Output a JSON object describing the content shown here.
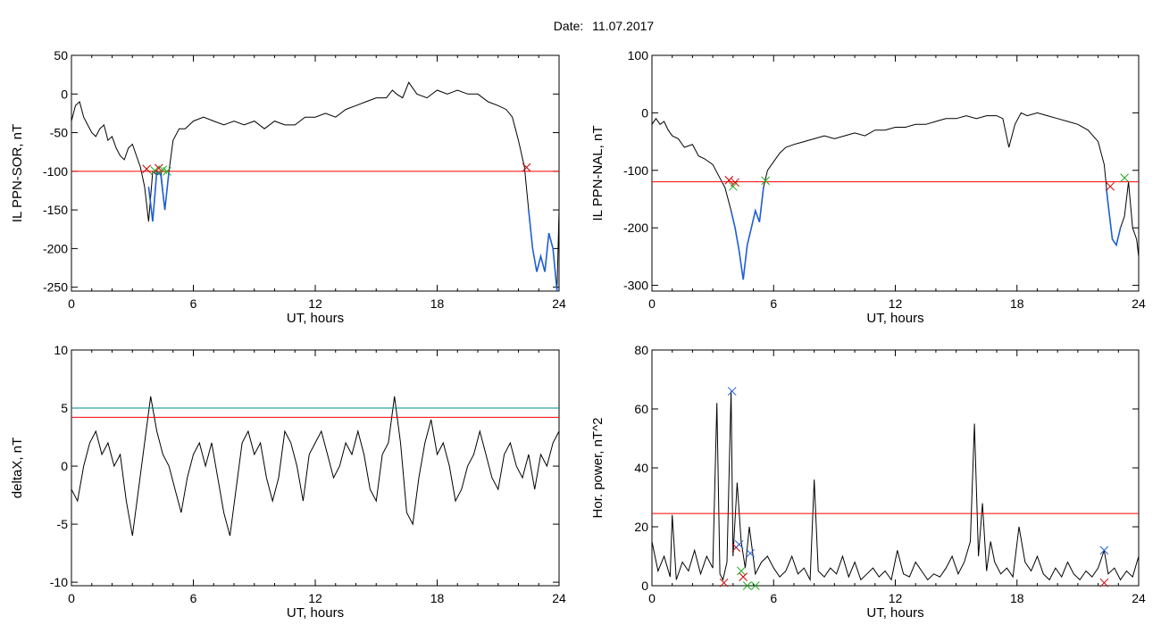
{
  "date_label": "Date:",
  "date_value": "11.07.2017",
  "colors": {
    "trace": "#000000",
    "threshold": "#ff0000",
    "threshold_alt": "#008b8b",
    "highlight": "#1f5fd8",
    "mark_red": "#cc0000",
    "mark_green": "#22aa22",
    "mark_blue": "#1f5fd8"
  },
  "chart_data": [
    {
      "type": "line",
      "xlabel": "UT, hours",
      "ylabel": "IL PPN-SOR, nT",
      "xlim": [
        0,
        24
      ],
      "ylim": [
        -255,
        50
      ],
      "xticks": [
        0,
        6,
        12,
        18,
        24
      ],
      "yticks": [
        50,
        0,
        -50,
        -100,
        -150,
        -200,
        -250
      ],
      "thresholds": [
        {
          "value": -100,
          "color": "red"
        }
      ],
      "series": [
        {
          "style": "black",
          "x": [
            0,
            0.2,
            0.4,
            0.6,
            0.8,
            1.0,
            1.2,
            1.4,
            1.6,
            1.8,
            2.0,
            2.2,
            2.4,
            2.6,
            2.8,
            3.0,
            3.2,
            3.4,
            3.6,
            3.8,
            4.0,
            4.2,
            4.4,
            4.6,
            4.8,
            5.0,
            5.3,
            5.6,
            6.0,
            6.5,
            7.0,
            7.5,
            8.0,
            8.5,
            9.0,
            9.5,
            10.0,
            10.5,
            11.0,
            11.5,
            12.0,
            12.5,
            13.0,
            13.5,
            14.0,
            14.5,
            15.0,
            15.5,
            15.8,
            16.0,
            16.3,
            16.6,
            17.0,
            17.5,
            18.0,
            18.5,
            19.0,
            19.5,
            20.0,
            20.5,
            21.0,
            21.4,
            21.7,
            22.0,
            22.3,
            22.5,
            22.7,
            22.9,
            23.1,
            23.3,
            23.5,
            23.7,
            23.9,
            24.0
          ],
          "y": [
            -35,
            -15,
            -10,
            -30,
            -40,
            -50,
            -55,
            -45,
            -40,
            -60,
            -55,
            -70,
            -80,
            -85,
            -70,
            -65,
            -80,
            -95,
            -120,
            -165,
            -100,
            -105,
            -100,
            -150,
            -100,
            -60,
            -45,
            -45,
            -35,
            -30,
            -35,
            -40,
            -35,
            -40,
            -35,
            -45,
            -35,
            -40,
            -40,
            -30,
            -30,
            -25,
            -30,
            -20,
            -15,
            -10,
            -5,
            -5,
            5,
            0,
            -5,
            15,
            0,
            -5,
            5,
            0,
            5,
            0,
            0,
            -10,
            -15,
            -20,
            -30,
            -60,
            -95,
            -150,
            -200,
            -230,
            -210,
            -230,
            -180,
            -200,
            -255,
            -150
          ]
        },
        {
          "style": "blue",
          "x": [
            3.8,
            4.0,
            4.2,
            4.4,
            4.6,
            4.8
          ],
          "y": [
            -120,
            -165,
            -100,
            -105,
            -150,
            -100
          ]
        },
        {
          "style": "blue",
          "x": [
            22.5,
            22.7,
            22.9,
            23.1,
            23.3,
            23.5,
            23.7,
            23.9
          ],
          "y": [
            -150,
            -200,
            -230,
            -210,
            -230,
            -180,
            -200,
            -255
          ]
        }
      ],
      "markers": [
        {
          "x": 3.7,
          "y": -97,
          "color": "red"
        },
        {
          "x": 4.1,
          "y": -99,
          "color": "green"
        },
        {
          "x": 4.3,
          "y": -96,
          "color": "red"
        },
        {
          "x": 4.5,
          "y": -98,
          "color": "green"
        },
        {
          "x": 4.7,
          "y": -100,
          "color": "green"
        },
        {
          "x": 22.4,
          "y": -95,
          "color": "red"
        }
      ]
    },
    {
      "type": "line",
      "xlabel": "UT, hours",
      "ylabel": "IL PPN-NAL, nT",
      "xlim": [
        0,
        24
      ],
      "ylim": [
        -310,
        100
      ],
      "xticks": [
        0,
        6,
        12,
        18,
        24
      ],
      "yticks": [
        100,
        0,
        -100,
        -200,
        -300
      ],
      "thresholds": [
        {
          "value": -120,
          "color": "red"
        }
      ],
      "series": [
        {
          "style": "black",
          "x": [
            0,
            0.2,
            0.4,
            0.6,
            0.8,
            1.0,
            1.3,
            1.6,
            2.0,
            2.3,
            2.6,
            3.0,
            3.3,
            3.6,
            3.9,
            4.1,
            4.3,
            4.5,
            4.7,
            4.9,
            5.1,
            5.3,
            5.5,
            5.7,
            6.0,
            6.3,
            6.6,
            7.0,
            7.5,
            8.0,
            8.5,
            9.0,
            9.5,
            10.0,
            10.5,
            11.0,
            11.5,
            12.0,
            12.5,
            13.0,
            13.5,
            14.0,
            14.5,
            15.0,
            15.5,
            16.0,
            16.5,
            17.0,
            17.3,
            17.6,
            17.9,
            18.2,
            18.5,
            19.0,
            19.5,
            20.0,
            20.5,
            21.0,
            21.5,
            22.0,
            22.3,
            22.5,
            22.7,
            22.9,
            23.1,
            23.3,
            23.5,
            23.7,
            23.9,
            24.0
          ],
          "y": [
            -20,
            -10,
            -20,
            -15,
            -30,
            -40,
            -45,
            -60,
            -55,
            -75,
            -80,
            -90,
            -110,
            -130,
            -170,
            -200,
            -240,
            -290,
            -230,
            -200,
            -170,
            -190,
            -130,
            -100,
            -85,
            -70,
            -60,
            -55,
            -50,
            -45,
            -40,
            -45,
            -40,
            -35,
            -40,
            -30,
            -30,
            -25,
            -25,
            -20,
            -20,
            -15,
            -10,
            -10,
            -5,
            -10,
            -5,
            -5,
            -10,
            -60,
            -20,
            0,
            -5,
            0,
            -5,
            -10,
            -15,
            -20,
            -30,
            -50,
            -90,
            -160,
            -220,
            -230,
            -200,
            -180,
            -120,
            -200,
            -220,
            -250
          ]
        },
        {
          "style": "blue",
          "x": [
            3.9,
            4.1,
            4.3,
            4.5,
            4.7,
            4.9,
            5.1,
            5.3,
            5.5
          ],
          "y": [
            -170,
            -200,
            -240,
            -290,
            -230,
            -200,
            -170,
            -190,
            -130
          ]
        },
        {
          "style": "blue",
          "x": [
            22.4,
            22.5,
            22.7,
            22.9,
            23.1
          ],
          "y": [
            -130,
            -160,
            -220,
            -230,
            -200
          ]
        }
      ],
      "markers": [
        {
          "x": 3.8,
          "y": -117,
          "color": "red"
        },
        {
          "x": 4.0,
          "y": -128,
          "color": "green"
        },
        {
          "x": 4.1,
          "y": -121,
          "color": "red"
        },
        {
          "x": 5.6,
          "y": -118,
          "color": "green"
        },
        {
          "x": 22.6,
          "y": -128,
          "color": "red"
        },
        {
          "x": 23.3,
          "y": -113,
          "color": "green"
        }
      ]
    },
    {
      "type": "line",
      "xlabel": "UT, hours",
      "ylabel": "deltaX, nT",
      "xlim": [
        0,
        24
      ],
      "ylim": [
        -10.3,
        10
      ],
      "xticks": [
        0,
        6,
        12,
        18,
        24
      ],
      "yticks": [
        10,
        5,
        0,
        -5,
        -10
      ],
      "thresholds": [
        {
          "value": 5.0,
          "color": "teal"
        },
        {
          "value": 4.2,
          "color": "red"
        }
      ],
      "series": [
        {
          "style": "black",
          "x": [
            0,
            0.3,
            0.6,
            0.9,
            1.2,
            1.5,
            1.8,
            2.1,
            2.4,
            2.7,
            3.0,
            3.3,
            3.6,
            3.9,
            4.2,
            4.5,
            4.8,
            5.1,
            5.4,
            5.7,
            6.0,
            6.3,
            6.6,
            6.9,
            7.2,
            7.5,
            7.8,
            8.1,
            8.4,
            8.7,
            9.0,
            9.3,
            9.6,
            9.9,
            10.2,
            10.5,
            10.8,
            11.1,
            11.4,
            11.7,
            12.0,
            12.3,
            12.6,
            12.9,
            13.2,
            13.5,
            13.8,
            14.1,
            14.4,
            14.7,
            15.0,
            15.3,
            15.6,
            15.9,
            16.2,
            16.5,
            16.8,
            17.1,
            17.4,
            17.7,
            18.0,
            18.3,
            18.6,
            18.9,
            19.2,
            19.5,
            19.8,
            20.1,
            20.4,
            20.7,
            21.0,
            21.3,
            21.6,
            21.9,
            22.2,
            22.5,
            22.8,
            23.1,
            23.4,
            23.7,
            24.0
          ],
          "y": [
            -2,
            -3,
            0,
            2,
            3,
            1,
            2,
            0,
            1,
            -3,
            -6,
            -2,
            2,
            6,
            3,
            1,
            0,
            -2,
            -4,
            -1,
            1,
            2,
            0,
            2,
            -1,
            -4,
            -6,
            -2,
            2,
            3,
            1,
            2,
            -1,
            -3,
            -1,
            3,
            2,
            0,
            -3,
            1,
            2,
            3,
            1,
            -1,
            0,
            2,
            1,
            3,
            1,
            -2,
            -3,
            1,
            2,
            6,
            2,
            -4,
            -5,
            -1,
            2,
            4,
            1,
            2,
            0,
            -3,
            -2,
            0,
            1,
            3,
            1,
            -1,
            -2,
            1,
            2,
            0,
            -1,
            1,
            -2,
            1,
            0,
            2,
            3
          ]
        }
      ],
      "markers": []
    },
    {
      "type": "line",
      "xlabel": "UT, hours",
      "ylabel": "Hor. power, nT^2",
      "xlim": [
        0,
        24
      ],
      "ylim": [
        0,
        80
      ],
      "xticks": [
        0,
        6,
        12,
        18,
        24
      ],
      "yticks": [
        80,
        60,
        40,
        20,
        0
      ],
      "thresholds": [
        {
          "value": 24.5,
          "color": "red"
        }
      ],
      "series": [
        {
          "style": "black",
          "x": [
            0,
            0.3,
            0.6,
            0.9,
            1.0,
            1.2,
            1.5,
            1.8,
            2.1,
            2.4,
            2.7,
            3.0,
            3.2,
            3.35,
            3.5,
            3.7,
            3.9,
            4.0,
            4.2,
            4.4,
            4.6,
            4.8,
            5.1,
            5.4,
            5.7,
            6.0,
            6.3,
            6.6,
            6.9,
            7.2,
            7.5,
            7.8,
            8.0,
            8.2,
            8.5,
            8.8,
            9.1,
            9.4,
            9.7,
            10.0,
            10.3,
            10.6,
            10.9,
            11.2,
            11.5,
            11.8,
            12.1,
            12.4,
            12.7,
            13.0,
            13.3,
            13.6,
            13.9,
            14.2,
            14.5,
            14.8,
            15.1,
            15.4,
            15.7,
            15.9,
            16.1,
            16.3,
            16.5,
            16.7,
            16.9,
            17.2,
            17.5,
            17.8,
            18.1,
            18.4,
            18.7,
            19.0,
            19.3,
            19.6,
            19.9,
            20.2,
            20.5,
            20.8,
            21.1,
            21.4,
            21.7,
            22.0,
            22.3,
            22.5,
            22.8,
            23.1,
            23.4,
            23.7,
            24.0
          ],
          "y": [
            15,
            5,
            10,
            3,
            24,
            2,
            8,
            5,
            12,
            4,
            10,
            6,
            62,
            4,
            2,
            8,
            66,
            10,
            35,
            15,
            6,
            20,
            4,
            8,
            10,
            6,
            3,
            5,
            10,
            4,
            6,
            2,
            36,
            5,
            3,
            6,
            4,
            10,
            3,
            8,
            2,
            4,
            6,
            3,
            5,
            2,
            12,
            4,
            3,
            8,
            5,
            2,
            4,
            3,
            6,
            10,
            4,
            8,
            15,
            55,
            10,
            28,
            5,
            15,
            8,
            4,
            6,
            3,
            20,
            8,
            5,
            10,
            4,
            2,
            6,
            3,
            8,
            4,
            2,
            5,
            3,
            6,
            12,
            4,
            6,
            2,
            5,
            3,
            10
          ]
        }
      ],
      "markers": [
        {
          "x": 3.55,
          "y": 1,
          "color": "red"
        },
        {
          "x": 3.95,
          "y": 66,
          "color": "blue"
        },
        {
          "x": 4.15,
          "y": 13,
          "color": "red"
        },
        {
          "x": 4.3,
          "y": 14,
          "color": "blue"
        },
        {
          "x": 4.4,
          "y": 5,
          "color": "green"
        },
        {
          "x": 4.5,
          "y": 3,
          "color": "red"
        },
        {
          "x": 4.7,
          "y": 0,
          "color": "green"
        },
        {
          "x": 4.85,
          "y": 11,
          "color": "blue"
        },
        {
          "x": 5.1,
          "y": 0,
          "color": "green"
        },
        {
          "x": 22.3,
          "y": 12,
          "color": "blue"
        },
        {
          "x": 22.3,
          "y": 1,
          "color": "red"
        }
      ]
    }
  ]
}
